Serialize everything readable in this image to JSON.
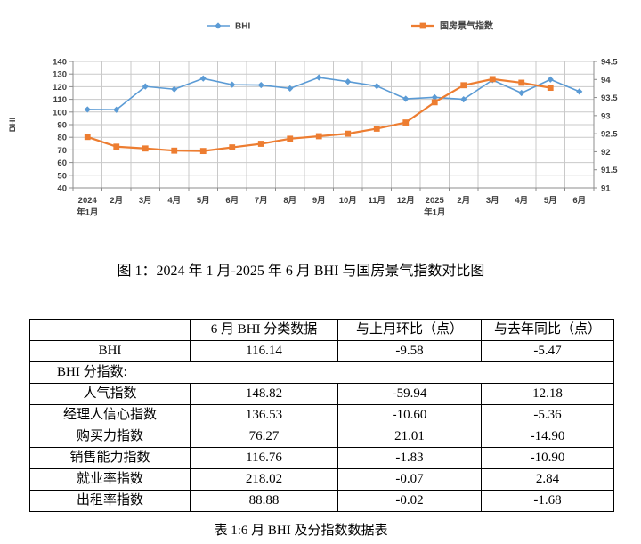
{
  "captions": {
    "figure": "图 1：2024 年 1 月-2025 年 6 月 BHI 与国房景气指数对比图",
    "table": "表 1:6 月 BHI 及分指数数据表"
  },
  "chart_data": {
    "type": "line",
    "title": "",
    "categories": [
      "2024\n年1月",
      "2月",
      "3月",
      "4月",
      "5月",
      "6月",
      "7月",
      "8月",
      "9月",
      "10月",
      "11月",
      "12月",
      "2025\n年1月",
      "2月",
      "3月",
      "4月",
      "5月",
      "6月"
    ],
    "series": [
      {
        "name": "BHI",
        "axis": "left",
        "color": "#5B9BD5",
        "marker": "diamond",
        "values": [
          102.0,
          101.8,
          120.2,
          118.0,
          126.5,
          121.61,
          121.3,
          118.6,
          127.3,
          124.0,
          120.5,
          110.4,
          111.6,
          110.0,
          125.3,
          115.0,
          125.72,
          116.14
        ]
      },
      {
        "name": "国房景气指数",
        "axis": "right",
        "color": "#ED7D31",
        "marker": "square",
        "values": [
          92.41,
          92.14,
          92.09,
          92.03,
          92.02,
          92.12,
          92.22,
          92.36,
          92.43,
          92.5,
          92.64,
          92.81,
          93.37,
          93.84,
          94.01,
          93.91,
          93.77
        ]
      }
    ],
    "left_axis": {
      "title": "BHI",
      "min": 40,
      "max": 140,
      "step": 10
    },
    "right_axis": {
      "min": 91,
      "max": 94.5,
      "step": 0.5
    },
    "grid": true,
    "legend_position": "top",
    "colors": {
      "grid": "#c9c9c9",
      "axis": "#8c8c8c",
      "tick_text": "#3f3f3f"
    }
  },
  "table": {
    "header": [
      "",
      "6 月 BHI 分类数据",
      "与上月环比（点）",
      "与去年同比（点）"
    ],
    "rows": [
      {
        "label": "BHI",
        "values": [
          "116.14",
          "-9.58",
          "-5.47"
        ]
      },
      {
        "label": "BHI 分指数:",
        "section": true
      },
      {
        "label": "人气指数",
        "values": [
          "148.82",
          "-59.94",
          "12.18"
        ]
      },
      {
        "label": "经理人信心指数",
        "values": [
          "136.53",
          "-10.60",
          "-5.36"
        ]
      },
      {
        "label": "购买力指数",
        "values": [
          "76.27",
          "21.01",
          "-14.90"
        ]
      },
      {
        "label": "销售能力指数",
        "values": [
          "116.76",
          "-1.83",
          "-10.90"
        ]
      },
      {
        "label": "就业率指数",
        "values": [
          "218.02",
          "-0.07",
          "2.84"
        ]
      },
      {
        "label": "出租率指数",
        "values": [
          "88.88",
          "-0.02",
          "-1.68"
        ]
      }
    ]
  }
}
